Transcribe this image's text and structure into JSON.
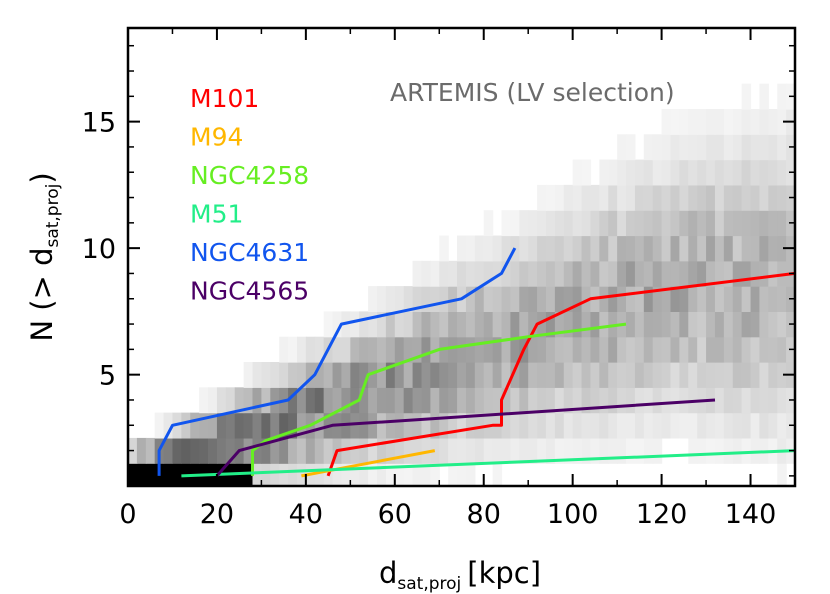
{
  "chart_data": {
    "type": "line",
    "title": "",
    "xlabel": {
      "main": "d",
      "sub": "sat,proj",
      "unit": "[kpc]"
    },
    "ylabel": {
      "pre": "N (> d",
      "sub": "sat,proj",
      "post": ")"
    },
    "xlim": [
      0,
      150
    ],
    "ylim": [
      0.6,
      18.7
    ],
    "x_ticks": [
      0,
      20,
      40,
      60,
      80,
      100,
      120,
      140
    ],
    "y_ticks": [
      5,
      10,
      15
    ],
    "annotation": "ARTEMIS (LV selection)",
    "legend_position": "top-left",
    "background": "grayscale 2D histogram of ARTEMIS satellite counts (darker = more systems)",
    "series": [
      {
        "name": "M101",
        "color": "#ff0000",
        "x": [
          45,
          47,
          82,
          84,
          84,
          89,
          92,
          104,
          150
        ],
        "y": [
          1,
          2,
          3,
          3,
          4,
          6,
          7,
          8,
          9
        ]
      },
      {
        "name": "M94",
        "color": "#ffb700",
        "x": [
          39,
          45,
          69
        ],
        "y": [
          1,
          1.2,
          2
        ]
      },
      {
        "name": "NGC4258",
        "color": "#66ee22",
        "x": [
          28,
          28,
          31,
          41,
          52,
          54,
          70,
          90,
          112
        ],
        "y": [
          1,
          2,
          2.4,
          3,
          4,
          5,
          6,
          6.5,
          7
        ]
      },
      {
        "name": "M51",
        "color": "#22ee88",
        "x": [
          12,
          150
        ],
        "y": [
          1,
          2
        ]
      },
      {
        "name": "NGC4631",
        "color": "#1155ee",
        "x": [
          7,
          7,
          10,
          36,
          42,
          48,
          75,
          84,
          87
        ],
        "y": [
          1,
          2,
          3,
          4,
          5,
          7,
          8,
          9,
          10
        ]
      },
      {
        "name": "NGC4565",
        "color": "#4b0066",
        "x": [
          20,
          25,
          46,
          132
        ],
        "y": [
          1,
          2,
          3,
          4
        ]
      }
    ]
  }
}
